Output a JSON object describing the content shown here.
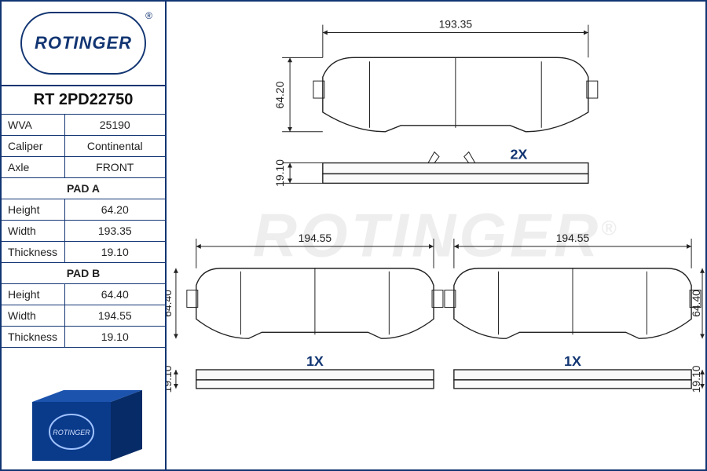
{
  "brand": "ROTINGER",
  "part_number": "RT 2PD22750",
  "specs": [
    {
      "k": "WVA",
      "v": "25190"
    },
    {
      "k": "Caliper",
      "v": "Continental"
    },
    {
      "k": "Axle",
      "v": "FRONT"
    }
  ],
  "padA": {
    "header": "PAD A",
    "rows": [
      {
        "k": "Height",
        "v": "64.20"
      },
      {
        "k": "Width",
        "v": "193.35"
      },
      {
        "k": "Thickness",
        "v": "19.10"
      }
    ]
  },
  "padB": {
    "header": "PAD B",
    "rows": [
      {
        "k": "Height",
        "v": "64.40"
      },
      {
        "k": "Width",
        "v": "194.55"
      },
      {
        "k": "Thickness",
        "v": "19.10"
      }
    ]
  },
  "diagram": {
    "top": {
      "w": "193.35",
      "h": "64.20",
      "t": "19.10",
      "qty": "2X"
    },
    "bl": {
      "w": "194.55",
      "h": "64.40",
      "t": "19.10",
      "qty": "1X"
    },
    "br": {
      "w": "194.55",
      "h": "64.40",
      "t": "19.10",
      "qty": "1X"
    }
  },
  "colors": {
    "line": "#222222",
    "brand": "#123572",
    "box_face": "#0a3a8a",
    "box_side": "#072b66",
    "box_top": "#1c53ad"
  }
}
